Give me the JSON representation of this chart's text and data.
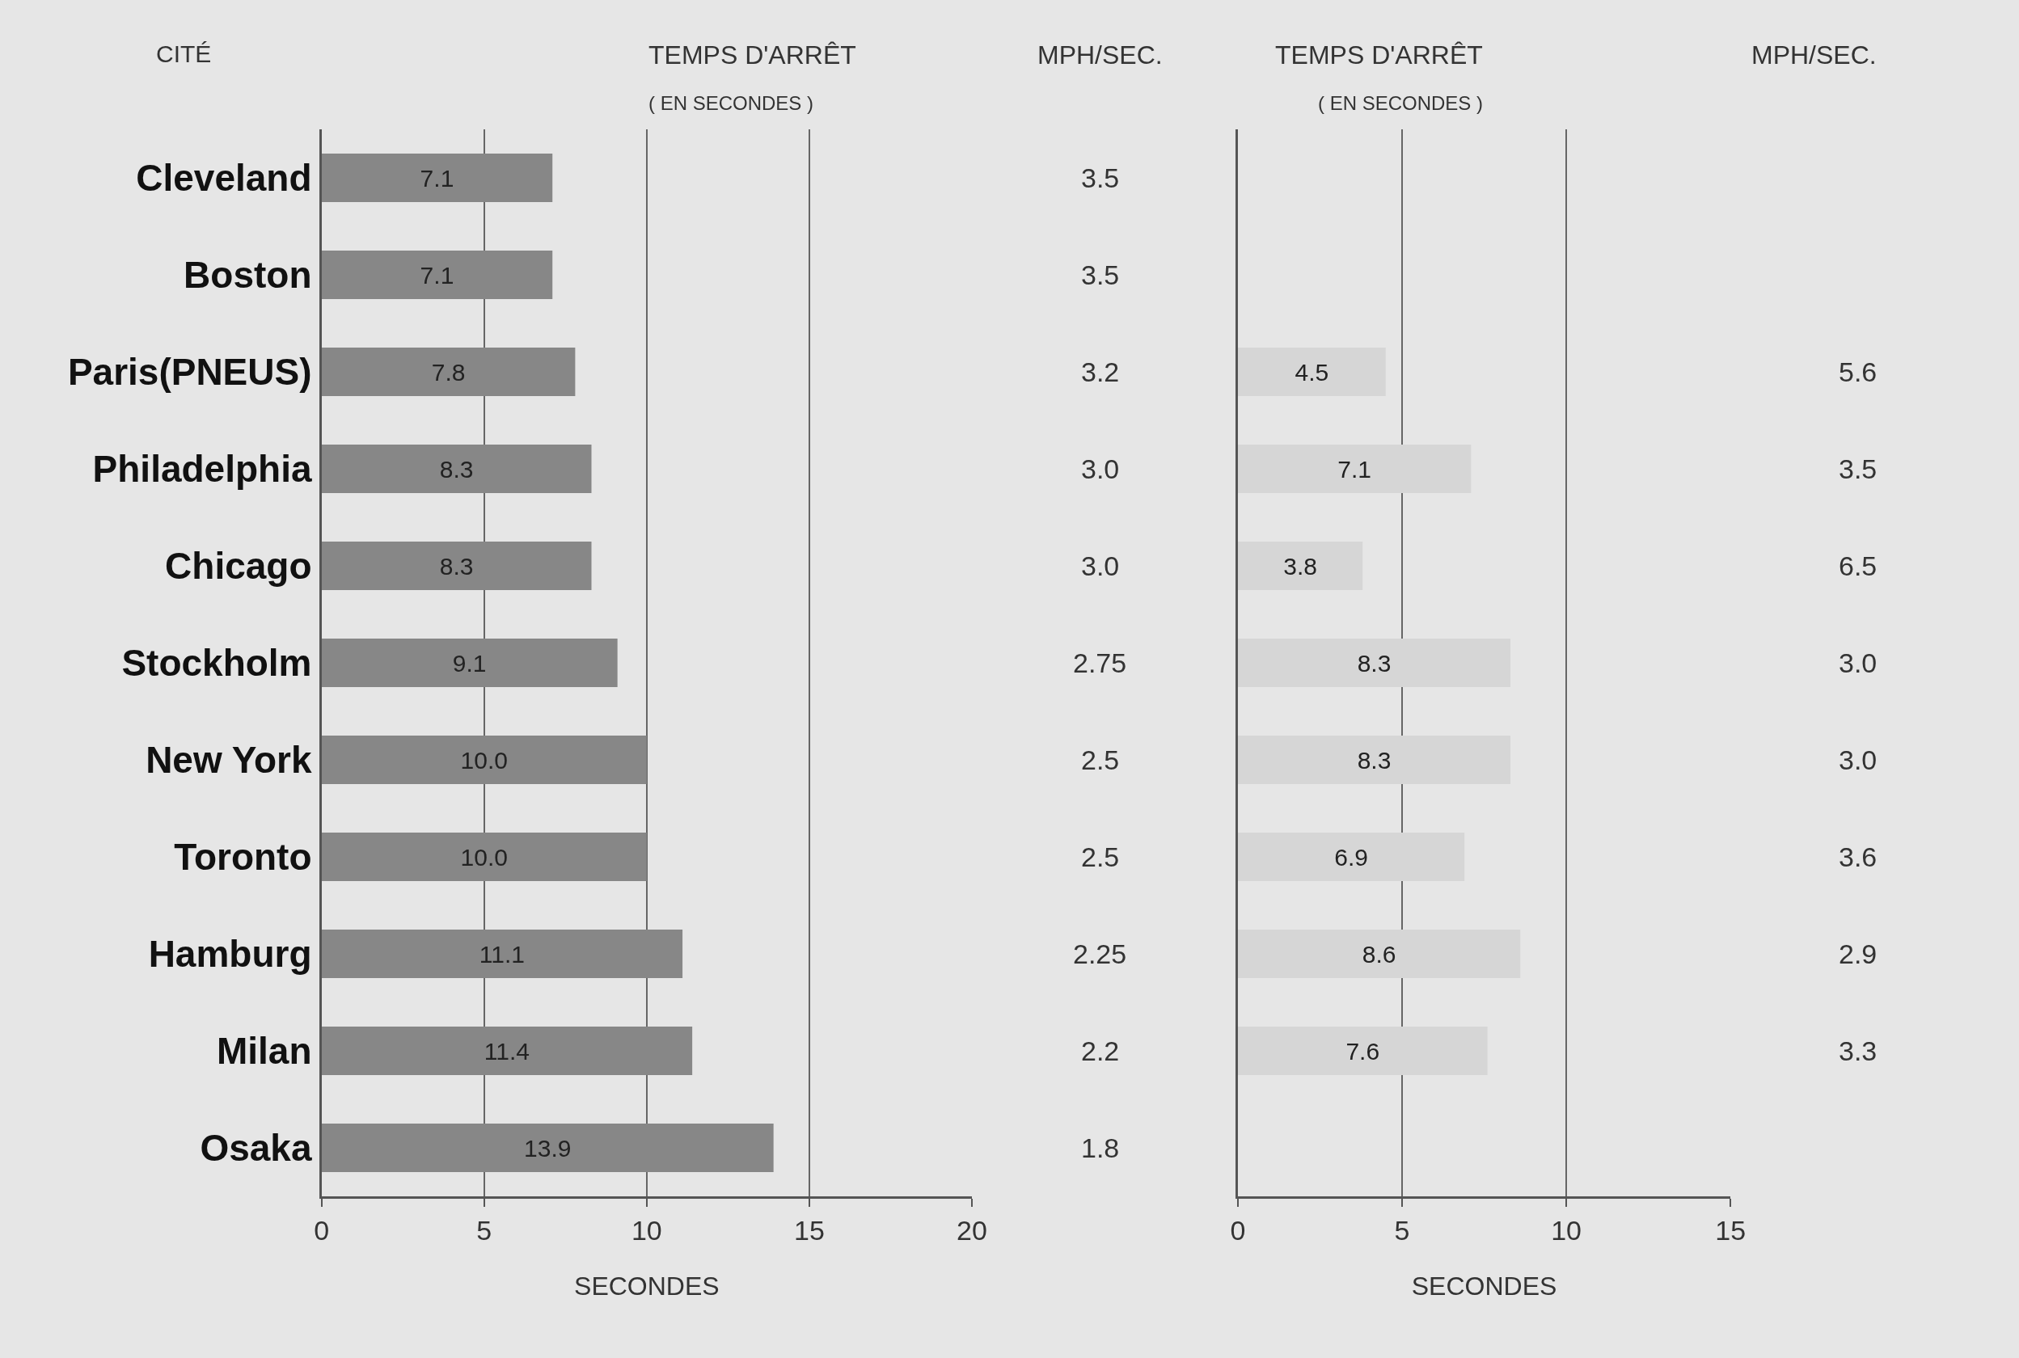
{
  "chart_data": [
    {
      "type": "bar",
      "orientation": "horizontal",
      "title": "TEMPS D'ARRÊT",
      "subtitle": "( EN SECONDES )",
      "ylabel": "CITÉ",
      "xlabel": "SECONDES",
      "categories": [
        "Cleveland",
        "Boston",
        "Paris(PNEUS)",
        "Philadelphia",
        "Chicago",
        "Stockholm",
        "New York",
        "Toronto",
        "Hamburg",
        "Milan",
        "Osaka"
      ],
      "values": [
        7.1,
        7.1,
        7.8,
        8.3,
        8.3,
        9.1,
        10.0,
        10.0,
        11.1,
        11.4,
        13.9
      ],
      "value_labels": [
        "7.1",
        "7.1",
        "7.8",
        "8.3",
        "8.3",
        "9.1",
        "10.0",
        "10.0",
        "11.1",
        "11.4",
        "13.9"
      ],
      "color": "#878787",
      "xlim": [
        0,
        20
      ],
      "xticks": [
        0,
        5,
        10,
        15,
        20
      ],
      "grid": "x",
      "annotations": [
        "MPH/SEC.",
        "3.5",
        "3.5",
        "3.2",
        "3.0",
        "3.0",
        "2.75",
        "2.5",
        "2.5",
        "2.25",
        "2.2",
        "1.8"
      ]
    },
    {
      "type": "bar",
      "orientation": "horizontal",
      "title": "TEMPS D'ARRÊT",
      "subtitle": "( EN SECONDES )",
      "xlabel": "SECONDES",
      "categories": [
        null,
        null,
        null,
        null,
        null,
        null,
        null,
        null,
        null,
        null,
        null
      ],
      "values": [
        null,
        null,
        4.5,
        7.1,
        3.8,
        8.3,
        8.3,
        6.9,
        8.6,
        7.6,
        null
      ],
      "value_labels": [
        null,
        null,
        "4.5",
        "7.1",
        "3.8",
        "8.3",
        "8.3",
        "6.9",
        "8.6",
        "7.6",
        null
      ],
      "color": "#d6d6d6",
      "xlim": [
        0,
        15
      ],
      "xticks": [
        0,
        5,
        10,
        15
      ],
      "grid": "x",
      "annotations": [
        "MPH/SEC.",
        "5.6",
        "3.5",
        "6.5",
        "3.0",
        "3.0",
        "3.6",
        "2.9",
        "3.3"
      ]
    }
  ]
}
